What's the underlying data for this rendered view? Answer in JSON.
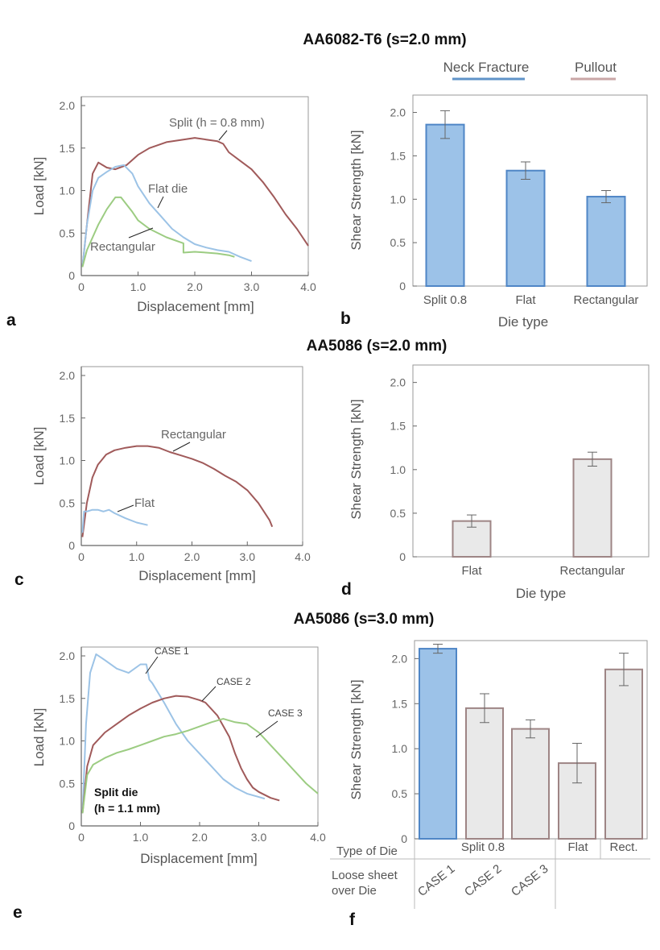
{
  "colors": {
    "blue_line": "#9cc3e6",
    "red_line": "#a05a5a",
    "green_line": "#9ccc82",
    "neck_blue": "#5f93c8",
    "pullout_red": "#c9a6a6",
    "bar_blue_fill": "#9cc2e8",
    "bar_blue_stroke": "#4f86c6",
    "bar_grey_fill": "#e9e9e9",
    "bar_grey_stroke": "#9e8585"
  },
  "panel_labels": [
    "a",
    "b",
    "c",
    "d",
    "e",
    "f"
  ],
  "legend": {
    "neck": "Neck Fracture",
    "pullout": "Pullout"
  },
  "chart_data": [
    {
      "id": "a",
      "type": "line",
      "group_title": "AA6082-T6 (s=2.0 mm)",
      "xlabel": "Displacement [mm]",
      "ylabel": "Load [kN]",
      "xlim": [
        0,
        4.0
      ],
      "ylim": [
        0,
        2.0
      ],
      "xticks": [
        0,
        1.0,
        2.0,
        3.0,
        4.0
      ],
      "xtick_labels": [
        "0",
        "1.0",
        "2.0",
        "3.0",
        "4.0"
      ],
      "yticks": [
        0,
        0.5,
        1.0,
        1.5,
        2.0
      ],
      "ytick_labels": [
        "0",
        "0.5",
        "1.0",
        "1.5",
        "2.0"
      ],
      "grid": false,
      "series": [
        {
          "color": "#a05a5a",
          "x": [
            0.02,
            0.1,
            0.2,
            0.3,
            0.45,
            0.6,
            0.8,
            1.0,
            1.2,
            1.5,
            1.8,
            2.0,
            2.2,
            2.4,
            2.5,
            2.6,
            2.8,
            3.0,
            3.2,
            3.4,
            3.6,
            3.8,
            4.0
          ],
          "y": [
            0.1,
            0.6,
            1.2,
            1.33,
            1.27,
            1.25,
            1.3,
            1.42,
            1.5,
            1.57,
            1.6,
            1.62,
            1.6,
            1.58,
            1.55,
            1.45,
            1.35,
            1.25,
            1.1,
            0.92,
            0.72,
            0.55,
            0.35
          ]
        },
        {
          "color": "#9cc3e6",
          "x": [
            0.02,
            0.1,
            0.2,
            0.3,
            0.45,
            0.6,
            0.75,
            0.9,
            1.0,
            1.2,
            1.4,
            1.6,
            1.8,
            2.0,
            2.2,
            2.4,
            2.6,
            2.8,
            3.0
          ],
          "y": [
            0.1,
            0.6,
            1.0,
            1.15,
            1.22,
            1.28,
            1.3,
            1.2,
            1.05,
            0.85,
            0.7,
            0.55,
            0.45,
            0.37,
            0.33,
            0.3,
            0.28,
            0.22,
            0.17
          ]
        },
        {
          "color": "#9ccc82",
          "x": [
            0.02,
            0.1,
            0.2,
            0.3,
            0.45,
            0.6,
            0.7,
            0.9,
            1.0,
            1.2,
            1.5,
            1.8,
            1.8,
            2.0,
            2.2,
            2.4,
            2.6,
            2.7
          ],
          "y": [
            0.1,
            0.3,
            0.45,
            0.6,
            0.78,
            0.92,
            0.92,
            0.75,
            0.65,
            0.55,
            0.45,
            0.38,
            0.27,
            0.28,
            0.27,
            0.26,
            0.24,
            0.22
          ]
        }
      ],
      "annotations": [
        "Split (h = 0.8 mm)",
        "Flat die",
        "Rectangular"
      ]
    },
    {
      "id": "b",
      "type": "bar",
      "xlabel": "Die type",
      "ylabel": "Shear Strength [kN]",
      "ylim": [
        0,
        2.2
      ],
      "yticks": [
        0,
        0.5,
        1.0,
        1.5,
        2.0
      ],
      "ytick_labels": [
        "0",
        "0.5",
        "1.0",
        "1.5",
        "2.0"
      ],
      "categories": [
        "Split 0.8",
        "Flat",
        "Rectangular"
      ],
      "values": [
        1.86,
        1.33,
        1.03
      ],
      "errors": [
        0.16,
        0.1,
        0.07
      ],
      "failure_modes": [
        "neck",
        "neck",
        "neck"
      ],
      "grid": false
    },
    {
      "id": "c",
      "type": "line",
      "group_title": "AA5086 (s=2.0 mm)",
      "xlabel": "Displacement [mm]",
      "ylabel": "Load [kN]",
      "xlim": [
        0,
        4.0
      ],
      "ylim": [
        0,
        2.0
      ],
      "xticks": [
        0,
        1.0,
        2.0,
        3.0,
        4.0
      ],
      "xtick_labels": [
        "0",
        "1.0",
        "2.0",
        "3.0",
        "4.0"
      ],
      "yticks": [
        0,
        0.5,
        1.0,
        1.5,
        2.0
      ],
      "ytick_labels": [
        "0",
        "0.5",
        "1.0",
        "1.5",
        "2.0"
      ],
      "grid": false,
      "series": [
        {
          "color": "#a05a5a",
          "x": [
            0.02,
            0.1,
            0.2,
            0.3,
            0.45,
            0.6,
            0.8,
            1.0,
            1.2,
            1.4,
            1.6,
            1.8,
            2.0,
            2.2,
            2.4,
            2.6,
            2.8,
            3.0,
            3.2,
            3.4,
            3.45
          ],
          "y": [
            0.1,
            0.5,
            0.8,
            0.95,
            1.07,
            1.12,
            1.15,
            1.17,
            1.17,
            1.15,
            1.1,
            1.06,
            1.02,
            0.97,
            0.9,
            0.82,
            0.75,
            0.65,
            0.5,
            0.3,
            0.22
          ]
        },
        {
          "color": "#9cc3e6",
          "x": [
            0.02,
            0.05,
            0.1,
            0.2,
            0.3,
            0.4,
            0.5,
            0.6,
            0.8,
            1.0,
            1.2
          ],
          "y": [
            0.15,
            0.4,
            0.4,
            0.42,
            0.42,
            0.4,
            0.42,
            0.38,
            0.32,
            0.27,
            0.24
          ]
        }
      ],
      "annotations": [
        "Rectangular",
        "Flat"
      ]
    },
    {
      "id": "d",
      "type": "bar",
      "xlabel": "Die type",
      "ylabel": "Shear Strength [kN]",
      "ylim": [
        0,
        2.2
      ],
      "yticks": [
        0,
        0.5,
        1.0,
        1.5,
        2.0
      ],
      "ytick_labels": [
        "0",
        "0.5",
        "1.0",
        "1.5",
        "2.0"
      ],
      "categories": [
        "Flat",
        "Rectangular"
      ],
      "values": [
        0.41,
        1.12
      ],
      "errors": [
        0.07,
        0.08
      ],
      "failure_modes": [
        "pullout",
        "pullout"
      ],
      "grid": false
    },
    {
      "id": "e",
      "type": "line",
      "group_title": "AA5086 (s=3.0 mm)",
      "xlabel": "Displacement [mm]",
      "ylabel": "Load [kN]",
      "xlim": [
        0,
        4.0
      ],
      "ylim": [
        0,
        2.0
      ],
      "xticks": [
        0,
        1.0,
        2.0,
        3.0,
        4.0
      ],
      "xtick_labels": [
        "0",
        "1.0",
        "2.0",
        "3.0",
        "4.0"
      ],
      "yticks": [
        0,
        0.5,
        1.0,
        1.5,
        2.0
      ],
      "ytick_labels": [
        "0",
        "0.5",
        "1.0",
        "1.5",
        "2.0"
      ],
      "grid": false,
      "series": [
        {
          "color": "#9cc3e6",
          "x": [
            0.02,
            0.08,
            0.15,
            0.25,
            0.4,
            0.6,
            0.8,
            1.0,
            1.1,
            1.15,
            1.2,
            1.4,
            1.6,
            1.8,
            2.0,
            2.2,
            2.4,
            2.6,
            2.8,
            3.0,
            3.1
          ],
          "y": [
            0.15,
            1.2,
            1.8,
            2.02,
            1.95,
            1.85,
            1.8,
            1.9,
            1.9,
            1.72,
            1.68,
            1.45,
            1.2,
            1.0,
            0.85,
            0.7,
            0.55,
            0.45,
            0.38,
            0.34,
            0.32
          ]
        },
        {
          "color": "#a05a5a",
          "x": [
            0.02,
            0.1,
            0.2,
            0.4,
            0.6,
            0.8,
            1.0,
            1.2,
            1.4,
            1.6,
            1.8,
            2.0,
            2.1,
            2.3,
            2.5,
            2.6,
            2.7,
            2.8,
            2.9,
            3.0,
            3.2,
            3.35
          ],
          "y": [
            0.15,
            0.7,
            0.95,
            1.1,
            1.2,
            1.3,
            1.38,
            1.45,
            1.5,
            1.53,
            1.52,
            1.48,
            1.45,
            1.3,
            1.05,
            0.85,
            0.68,
            0.55,
            0.45,
            0.4,
            0.33,
            0.3
          ]
        },
        {
          "color": "#9ccc82",
          "x": [
            0.02,
            0.1,
            0.2,
            0.4,
            0.6,
            0.8,
            1.0,
            1.2,
            1.4,
            1.6,
            1.8,
            2.0,
            2.2,
            2.4,
            2.6,
            2.8,
            3.0,
            3.2,
            3.4,
            3.6,
            3.8,
            4.0
          ],
          "y": [
            0.15,
            0.6,
            0.72,
            0.8,
            0.86,
            0.9,
            0.95,
            1.0,
            1.05,
            1.08,
            1.12,
            1.17,
            1.22,
            1.26,
            1.22,
            1.2,
            1.1,
            0.95,
            0.8,
            0.65,
            0.5,
            0.38
          ]
        }
      ],
      "annotations": [
        "CASE 1",
        "CASE 2",
        "CASE 3",
        "Split die",
        "(h = 1.1 mm)"
      ]
    },
    {
      "id": "f",
      "type": "bar",
      "ylabel": "Shear Strength [kN]",
      "ylim": [
        0,
        2.2
      ],
      "yticks": [
        0,
        0.5,
        1.0,
        1.5,
        2.0
      ],
      "ytick_labels": [
        "0",
        "0.5",
        "1.0",
        "1.5",
        "2.0"
      ],
      "categories": [
        "CASE 1",
        "CASE 2",
        "CASE 3",
        "Flat",
        "Rect."
      ],
      "values": [
        2.11,
        1.45,
        1.22,
        0.84,
        1.88
      ],
      "errors": [
        0.05,
        0.16,
        0.1,
        0.22,
        0.18
      ],
      "failure_modes": [
        "neck",
        "pullout",
        "pullout",
        "pullout",
        "pullout"
      ],
      "table": {
        "row1_label": "Type of Die",
        "row1_groups": [
          "Split 0.8",
          "Flat",
          "Rect."
        ],
        "row2_label_line1": "Loose sheet",
        "row2_label_line2": "over Die",
        "row2_values": [
          "CASE 1",
          "CASE 2",
          "CASE 3"
        ]
      },
      "grid": false
    }
  ]
}
